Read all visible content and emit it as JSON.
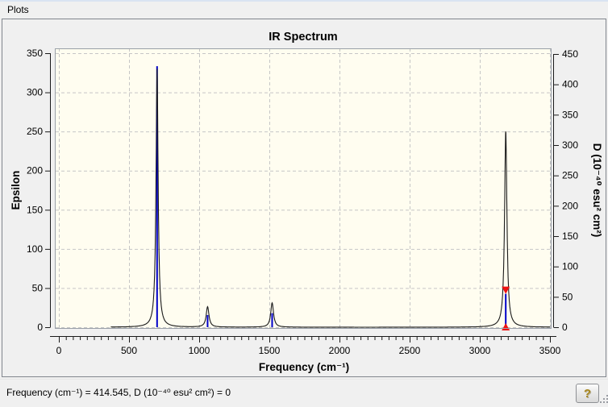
{
  "window": {
    "header": "Plots"
  },
  "statusbar": {
    "text": "Frequency (cm⁻¹) = 414.545, D (10⁻⁴⁰ esu² cm²) = 0",
    "help_label": "?"
  },
  "chart_data": {
    "type": "line",
    "title": "IR Spectrum",
    "xlabel": "Frequency (cm⁻¹)",
    "ylabel_left": "Epsilon",
    "ylabel_right": "D (10⁻⁴⁰ esu² cm²)",
    "grid": true,
    "x_axis": {
      "min": 0,
      "max": 3500,
      "major_step": 500,
      "minor_step": 50
    },
    "y_left": {
      "min": 0,
      "max": 350,
      "major_step": 50
    },
    "y_right": {
      "min": 0,
      "max": 450,
      "major_step": 50
    },
    "curve": {
      "name": "epsilon-broadened-spectrum",
      "color": "#1a1a1a",
      "range": [
        370,
        3500
      ],
      "peaks": [
        {
          "freq": 700,
          "epsilon": 330,
          "hwhm": 9
        },
        {
          "freq": 1060,
          "epsilon": 26,
          "hwhm": 12
        },
        {
          "freq": 1520,
          "epsilon": 31,
          "hwhm": 12
        },
        {
          "freq": 3185,
          "epsilon": 250,
          "hwhm": 10
        }
      ]
    },
    "sticks": {
      "name": "dipole-strength-sticks",
      "color": "#0000c8",
      "items": [
        {
          "freq": 700,
          "d": 430
        },
        {
          "freq": 1060,
          "d": 20
        },
        {
          "freq": 1520,
          "d": 23
        },
        {
          "freq": 3185,
          "d": 55
        }
      ]
    },
    "selected_marker": {
      "freq": 3185,
      "d": 55,
      "color": "#ee1111"
    },
    "colors": {
      "plot_bg": "#fffdf0",
      "grid": "#c6c6c6",
      "frame": "#9aa0a8",
      "axis": "#1a1a1a"
    }
  }
}
